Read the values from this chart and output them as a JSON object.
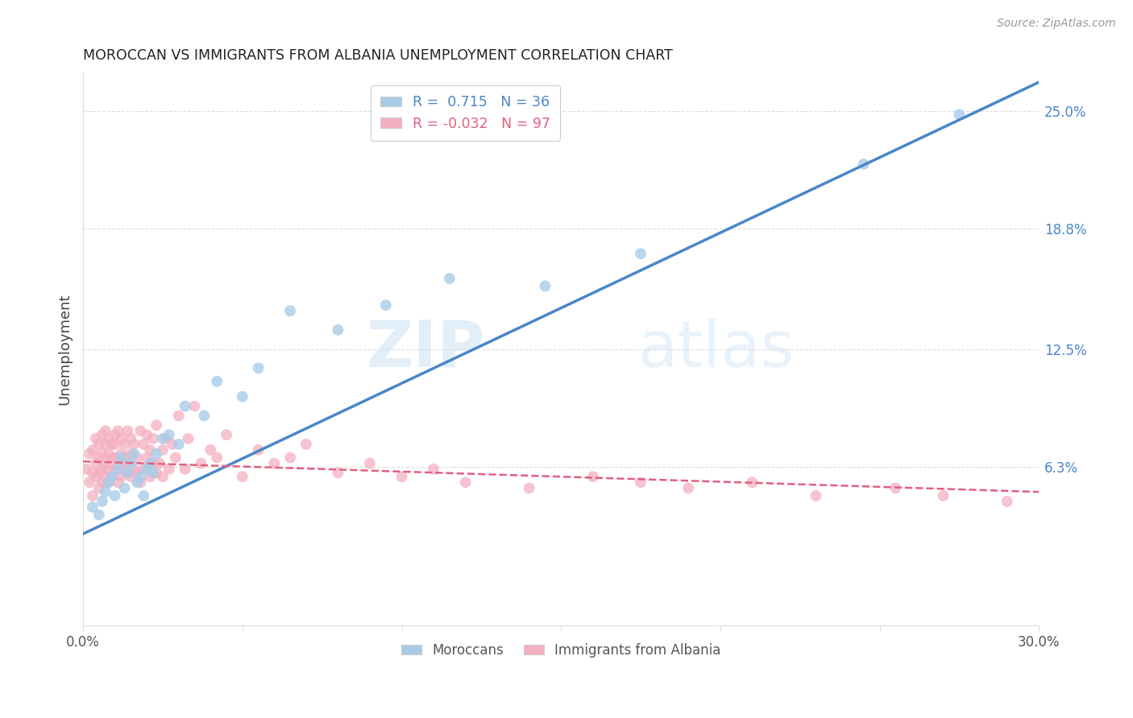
{
  "title": "MOROCCAN VS IMMIGRANTS FROM ALBANIA UNEMPLOYMENT CORRELATION CHART",
  "source": "Source: ZipAtlas.com",
  "ylabel": "Unemployment",
  "x_min": 0.0,
  "x_max": 0.3,
  "y_min": -0.02,
  "y_max": 0.27,
  "y_ticks": [
    0.063,
    0.125,
    0.188,
    0.25
  ],
  "y_tick_labels": [
    "6.3%",
    "12.5%",
    "18.8%",
    "25.0%"
  ],
  "x_ticks": [
    0.0,
    0.05,
    0.1,
    0.15,
    0.2,
    0.25,
    0.3
  ],
  "x_tick_labels": [
    "0.0%",
    "",
    "",
    "",
    "",
    "",
    "30.0%"
  ],
  "blue_color": "#a8cce8",
  "pink_color": "#f4afc0",
  "blue_line_color": "#4a86c8",
  "pink_line_color": "#e06080",
  "watermark_zip": "ZIP",
  "watermark_atlas": "atlas",
  "blue_line_x0": 0.0,
  "blue_line_y0": 0.028,
  "blue_line_x1": 0.3,
  "blue_line_y1": 0.265,
  "pink_line_x0": 0.0,
  "pink_line_y0": 0.066,
  "pink_line_x1": 0.3,
  "pink_line_y1": 0.05,
  "moroccans_x": [
    0.003,
    0.005,
    0.006,
    0.007,
    0.008,
    0.009,
    0.01,
    0.011,
    0.012,
    0.013,
    0.014,
    0.015,
    0.016,
    0.017,
    0.018,
    0.019,
    0.02,
    0.021,
    0.022,
    0.023,
    0.025,
    0.027,
    0.03,
    0.032,
    0.038,
    0.042,
    0.05,
    0.055,
    0.065,
    0.08,
    0.095,
    0.115,
    0.145,
    0.175,
    0.245,
    0.275
  ],
  "moroccans_y": [
    0.042,
    0.038,
    0.045,
    0.05,
    0.055,
    0.058,
    0.048,
    0.062,
    0.068,
    0.052,
    0.06,
    0.065,
    0.07,
    0.055,
    0.058,
    0.048,
    0.062,
    0.065,
    0.06,
    0.07,
    0.078,
    0.08,
    0.075,
    0.095,
    0.09,
    0.108,
    0.1,
    0.115,
    0.145,
    0.135,
    0.148,
    0.162,
    0.158,
    0.175,
    0.222,
    0.248
  ],
  "albania_x": [
    0.001,
    0.002,
    0.002,
    0.003,
    0.003,
    0.003,
    0.004,
    0.004,
    0.004,
    0.005,
    0.005,
    0.005,
    0.005,
    0.006,
    0.006,
    0.006,
    0.006,
    0.007,
    0.007,
    0.007,
    0.007,
    0.008,
    0.008,
    0.008,
    0.008,
    0.009,
    0.009,
    0.009,
    0.01,
    0.01,
    0.01,
    0.01,
    0.011,
    0.011,
    0.011,
    0.012,
    0.012,
    0.012,
    0.013,
    0.013,
    0.013,
    0.014,
    0.014,
    0.014,
    0.015,
    0.015,
    0.015,
    0.016,
    0.016,
    0.017,
    0.017,
    0.018,
    0.018,
    0.019,
    0.019,
    0.02,
    0.02,
    0.021,
    0.021,
    0.022,
    0.022,
    0.023,
    0.023,
    0.024,
    0.025,
    0.025,
    0.026,
    0.027,
    0.028,
    0.029,
    0.03,
    0.032,
    0.033,
    0.035,
    0.037,
    0.04,
    0.042,
    0.045,
    0.05,
    0.055,
    0.06,
    0.065,
    0.07,
    0.08,
    0.09,
    0.1,
    0.11,
    0.12,
    0.14,
    0.16,
    0.175,
    0.19,
    0.21,
    0.23,
    0.255,
    0.27,
    0.29
  ],
  "albania_y": [
    0.062,
    0.055,
    0.07,
    0.06,
    0.072,
    0.048,
    0.065,
    0.058,
    0.078,
    0.052,
    0.068,
    0.075,
    0.06,
    0.08,
    0.055,
    0.07,
    0.062,
    0.075,
    0.058,
    0.082,
    0.065,
    0.07,
    0.055,
    0.078,
    0.062,
    0.068,
    0.075,
    0.058,
    0.08,
    0.062,
    0.068,
    0.075,
    0.055,
    0.082,
    0.065,
    0.07,
    0.058,
    0.078,
    0.062,
    0.075,
    0.068,
    0.06,
    0.082,
    0.065,
    0.07,
    0.058,
    0.078,
    0.062,
    0.075,
    0.068,
    0.06,
    0.082,
    0.055,
    0.075,
    0.062,
    0.068,
    0.08,
    0.058,
    0.072,
    0.065,
    0.078,
    0.06,
    0.085,
    0.065,
    0.072,
    0.058,
    0.078,
    0.062,
    0.075,
    0.068,
    0.09,
    0.062,
    0.078,
    0.095,
    0.065,
    0.072,
    0.068,
    0.08,
    0.058,
    0.072,
    0.065,
    0.068,
    0.075,
    0.06,
    0.065,
    0.058,
    0.062,
    0.055,
    0.052,
    0.058,
    0.055,
    0.052,
    0.055,
    0.048,
    0.052,
    0.048,
    0.045
  ]
}
